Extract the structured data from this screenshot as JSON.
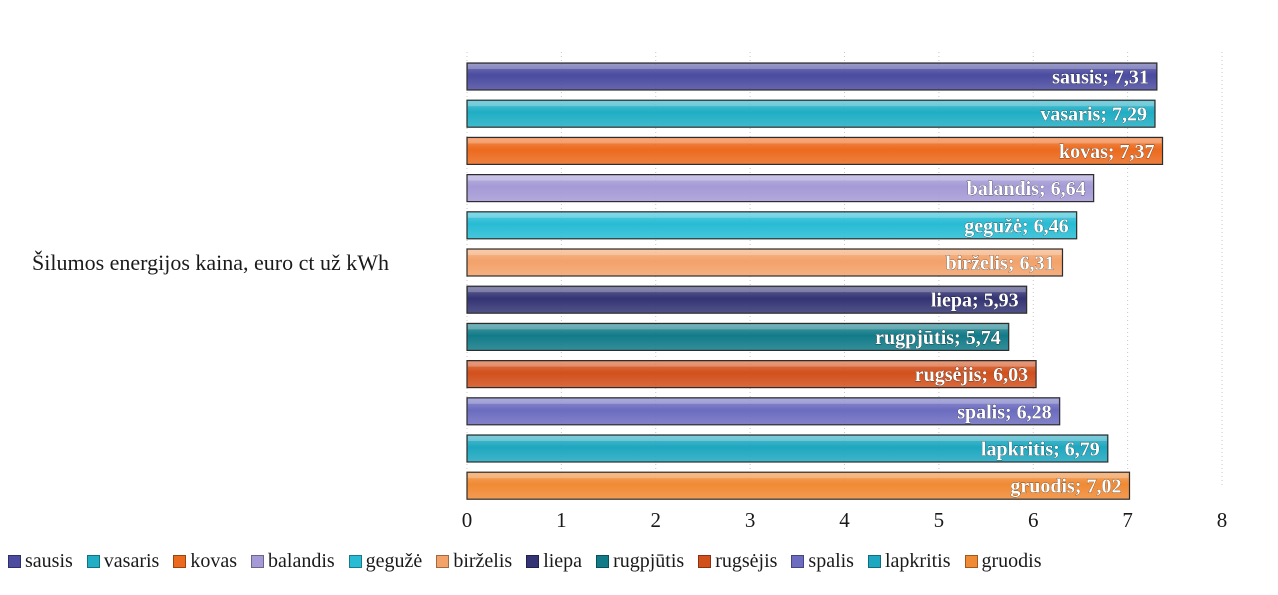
{
  "chart_data": {
    "type": "bar",
    "orientation": "horizontal",
    "category_label": "Šilumos energijos kaina, euro ct už kWh",
    "xlim": [
      0,
      8
    ],
    "x_ticks": [
      "0",
      "1",
      "2",
      "3",
      "4",
      "5",
      "6",
      "7",
      "8"
    ],
    "grid": true,
    "legend_position": "bottom",
    "series": [
      {
        "name": "sausis",
        "value": 7.31,
        "label": "sausis; 7,31",
        "color": "#4b4ba0"
      },
      {
        "name": "vasaris",
        "value": 7.29,
        "label": "vasaris; 7,29",
        "color": "#1faec4"
      },
      {
        "name": "kovas",
        "value": 7.37,
        "label": "kovas; 7,37",
        "color": "#ec6a1e"
      },
      {
        "name": "balandis",
        "value": 6.64,
        "label": "balandis; 6,64",
        "color": "#a59ad6"
      },
      {
        "name": "gegužė",
        "value": 6.46,
        "label": "gegužė; 6,46",
        "color": "#27bcd4"
      },
      {
        "name": "birželis",
        "value": 6.31,
        "label": "birželis; 6,31",
        "color": "#f3a26a"
      },
      {
        "name": "liepa",
        "value": 5.93,
        "label": "liepa; 5,93",
        "color": "#343474"
      },
      {
        "name": "rugpjūtis",
        "value": 5.74,
        "label": "rugpjūtis; 5,74",
        "color": "#127b88"
      },
      {
        "name": "rugsėjis",
        "value": 6.03,
        "label": "rugsėjis; 6,03",
        "color": "#d2501c"
      },
      {
        "name": "spalis",
        "value": 6.28,
        "label": "spalis; 6,28",
        "color": "#6c6cc0"
      },
      {
        "name": "lapkritis",
        "value": 6.79,
        "label": "lapkritis; 6,79",
        "color": "#1ea7c0"
      },
      {
        "name": "gruodis",
        "value": 7.02,
        "label": "gruodis; 7,02",
        "color": "#f08a34"
      }
    ]
  }
}
